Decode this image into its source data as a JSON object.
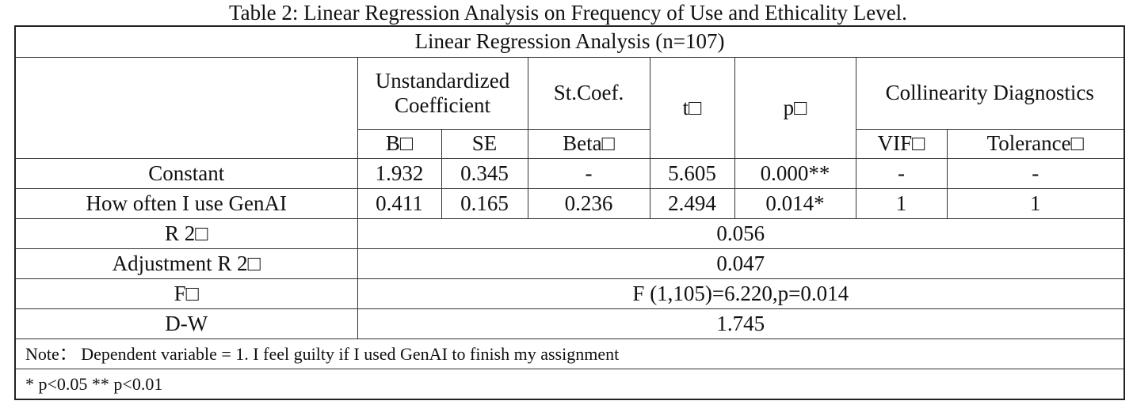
{
  "caption": "Table 2: Linear Regression Analysis on Frequency of Use and Ethicality Level.",
  "table": {
    "title": "Linear Regression Analysis (n=107)",
    "header": {
      "unstandardized": "Unstandardized Coefficient",
      "st_coef": "St.Coef.",
      "t": "t□",
      "p": "p□",
      "collinearity": "Collinearity Diagnostics",
      "b": "B□",
      "se": "SE",
      "beta": "Beta□",
      "vif": "VIF□",
      "tolerance": "Tolerance□"
    },
    "rows": [
      {
        "label": "Constant",
        "b": "1.932",
        "se": "0.345",
        "beta": "-",
        "t": "5.605",
        "p": "0.000**",
        "vif": "-",
        "tolerance": "-"
      },
      {
        "label": "How often I use GenAI",
        "b": "0.411",
        "se": "0.165",
        "beta": "0.236",
        "t": "2.494",
        "p": "0.014*",
        "vif": "1",
        "tolerance": "1"
      }
    ],
    "summary": [
      {
        "label": "R 2□",
        "value": "0.056"
      },
      {
        "label": "Adjustment R 2□",
        "value": "0.047"
      },
      {
        "label": "F□",
        "value": "F (1,105)=6.220,p=0.014"
      },
      {
        "label": "D-W",
        "value": "1.745"
      }
    ],
    "note": "Note： Dependent variable = 1. I feel guilty if I used GenAI to finish my assignment",
    "significance": "* p<0.05 ** p<0.01"
  }
}
